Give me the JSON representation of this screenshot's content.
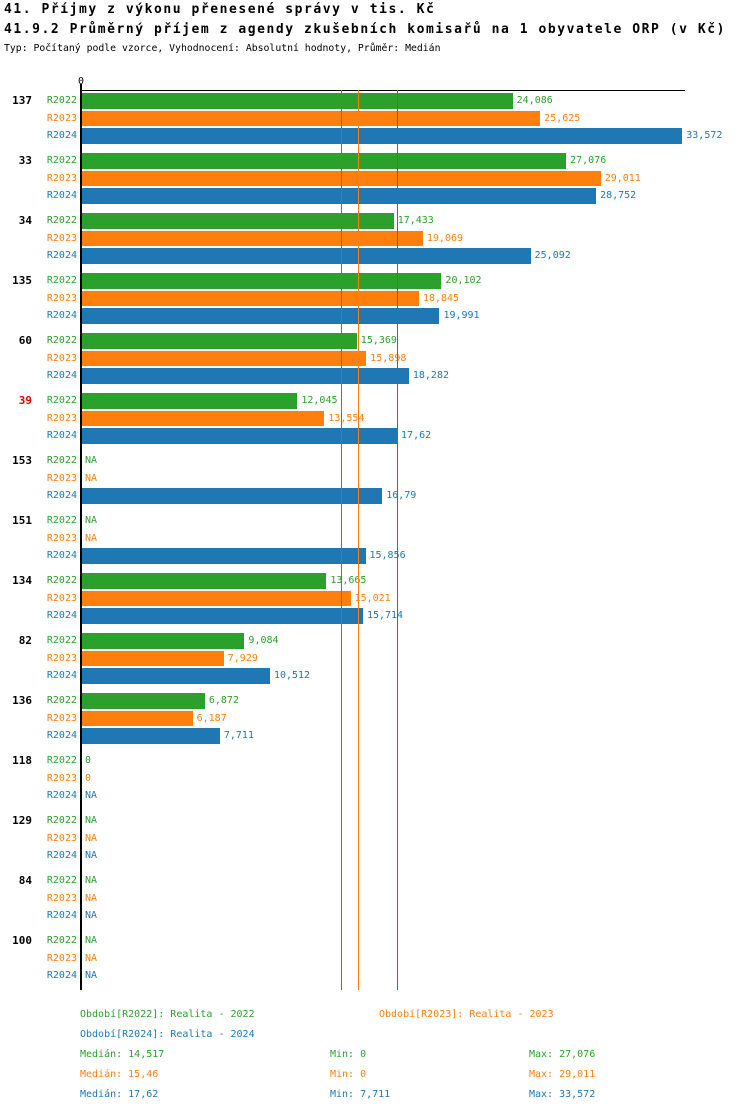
{
  "title1": "41. Příjmy z výkonu přenesené správy v tis. Kč",
  "title2": "41.9.2 Průměrný příjem z agendy zkušebních komisařů na 1 obyvatele ORP (v Kč)",
  "subtitle": "Typ: Počítaný podle vzorce, Vyhodnocení: Absolutní hodnoty, Průměr: Medián",
  "colors": {
    "r2022": "#2ca02c",
    "r2023": "#ff7f0e",
    "r2024": "#1f77b4",
    "highlight_orp": "#e60000",
    "axis": "#000000"
  },
  "chart_data": {
    "type": "bar",
    "orientation": "horizontal",
    "x_axis": {
      "zero_label": "0",
      "xlim": [
        0,
        33.8
      ],
      "unit": "Kč"
    },
    "series_labels": [
      "R2022",
      "R2023",
      "R2024"
    ],
    "legend_position": "bottom",
    "grid": false,
    "median_reference_lines": [
      14.517,
      15.46,
      17.62
    ],
    "groups": [
      {
        "orp": "137",
        "highlight": false,
        "values": [
          24.086,
          25.625,
          33.572
        ],
        "labels": [
          "24,086",
          "25,625",
          "33,572"
        ]
      },
      {
        "orp": "33",
        "highlight": false,
        "values": [
          27.076,
          29.011,
          28.752
        ],
        "labels": [
          "27,076",
          "29,011",
          "28,752"
        ]
      },
      {
        "orp": "34",
        "highlight": false,
        "values": [
          17.433,
          19.069,
          25.092
        ],
        "labels": [
          "17,433",
          "19,069",
          "25,092"
        ]
      },
      {
        "orp": "135",
        "highlight": false,
        "values": [
          20.102,
          18.845,
          19.991
        ],
        "labels": [
          "20,102",
          "18,845",
          "19,991"
        ]
      },
      {
        "orp": "60",
        "highlight": false,
        "values": [
          15.369,
          15.898,
          18.282
        ],
        "labels": [
          "15,369",
          "15,898",
          "18,282"
        ]
      },
      {
        "orp": "39",
        "highlight": true,
        "values": [
          12.045,
          13.554,
          17.62
        ],
        "labels": [
          "12,045",
          "13,554",
          "17,62"
        ]
      },
      {
        "orp": "153",
        "highlight": false,
        "values": [
          null,
          null,
          16.79
        ],
        "labels": [
          "NA",
          "NA",
          "16,79"
        ]
      },
      {
        "orp": "151",
        "highlight": false,
        "values": [
          null,
          null,
          15.856
        ],
        "labels": [
          "NA",
          "NA",
          "15,856"
        ]
      },
      {
        "orp": "134",
        "highlight": false,
        "values": [
          13.665,
          15.021,
          15.714
        ],
        "labels": [
          "13,665",
          "15,021",
          "15,714"
        ]
      },
      {
        "orp": "82",
        "highlight": false,
        "values": [
          9.084,
          7.929,
          10.512
        ],
        "labels": [
          "9,084",
          "7,929",
          "10,512"
        ]
      },
      {
        "orp": "136",
        "highlight": false,
        "values": [
          6.872,
          6.187,
          7.711
        ],
        "labels": [
          "6,872",
          "6,187",
          "7,711"
        ]
      },
      {
        "orp": "118",
        "highlight": false,
        "values": [
          0,
          0,
          null
        ],
        "labels": [
          "0",
          "0",
          "NA"
        ]
      },
      {
        "orp": "129",
        "highlight": false,
        "values": [
          null,
          null,
          null
        ],
        "labels": [
          "NA",
          "NA",
          "NA"
        ]
      },
      {
        "orp": "84",
        "highlight": false,
        "values": [
          null,
          null,
          null
        ],
        "labels": [
          "NA",
          "NA",
          "NA"
        ]
      },
      {
        "orp": "100",
        "highlight": false,
        "values": [
          null,
          null,
          null
        ],
        "labels": [
          "NA",
          "NA",
          "NA"
        ]
      }
    ]
  },
  "legend": {
    "periods": [
      {
        "label": "Období[R2022]: Realita - 2022"
      },
      {
        "label": "Období[R2023]: Realita - 2023"
      },
      {
        "label": "Období[R2024]: Realita - 2024"
      }
    ],
    "stats": [
      {
        "median": "Medián: 14,517",
        "min": "Min: 0",
        "max": "Max: 27,076"
      },
      {
        "median": "Medián: 15,46",
        "min": "Min: 0",
        "max": "Max: 29,011"
      },
      {
        "median": "Medián: 17,62",
        "min": "Min: 7,711",
        "max": "Max: 33,572"
      }
    ]
  }
}
